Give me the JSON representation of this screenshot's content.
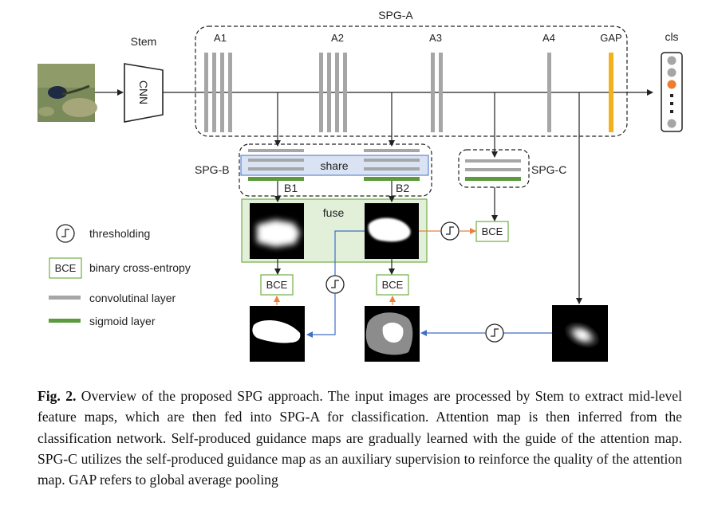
{
  "labels": {
    "spg_a": "SPG-A",
    "stem": "Stem",
    "cnn": "CNN",
    "a1": "A1",
    "a2": "A2",
    "a3": "A3",
    "a4": "A4",
    "gap": "GAP",
    "cls": "cls",
    "spg_b": "SPG-B",
    "share": "share",
    "b1": "B1",
    "b2": "B2",
    "spg_c": "SPG-C",
    "fuse": "fuse",
    "bce": "BCE"
  },
  "legend": {
    "thresholding": "thresholding",
    "bce_box": "BCE",
    "bce_desc": "binary cross-entropy",
    "conv": "convolutinal layer",
    "sigmoid": "sigmoid layer"
  },
  "caption": {
    "label": "Fig. 2.",
    "text": "Overview of the proposed SPG approach. The input images are processed by Stem to extract mid-level feature maps, which are then fed into SPG-A for classification. Attention map is then inferred from the classification network. Self-produced guidance maps are gradually learned with the guide of the attention map. SPG-C utilizes the self-produced guidance map as an auxiliary supervision to reinforce the quality of the attention map. GAP refers to global average pooling"
  },
  "colors": {
    "conv": "#a6a6a6",
    "sigmoid": "#5b9b3c",
    "gap": "#f2b21c",
    "arrow_blue": "#3e6fc4",
    "arrow_orange": "#e8813a",
    "fuse_fill": "#e2f0d9",
    "share_fill": "#dae3f3",
    "bce_border": "#70ad47",
    "cls_active": "#ed7d31"
  }
}
